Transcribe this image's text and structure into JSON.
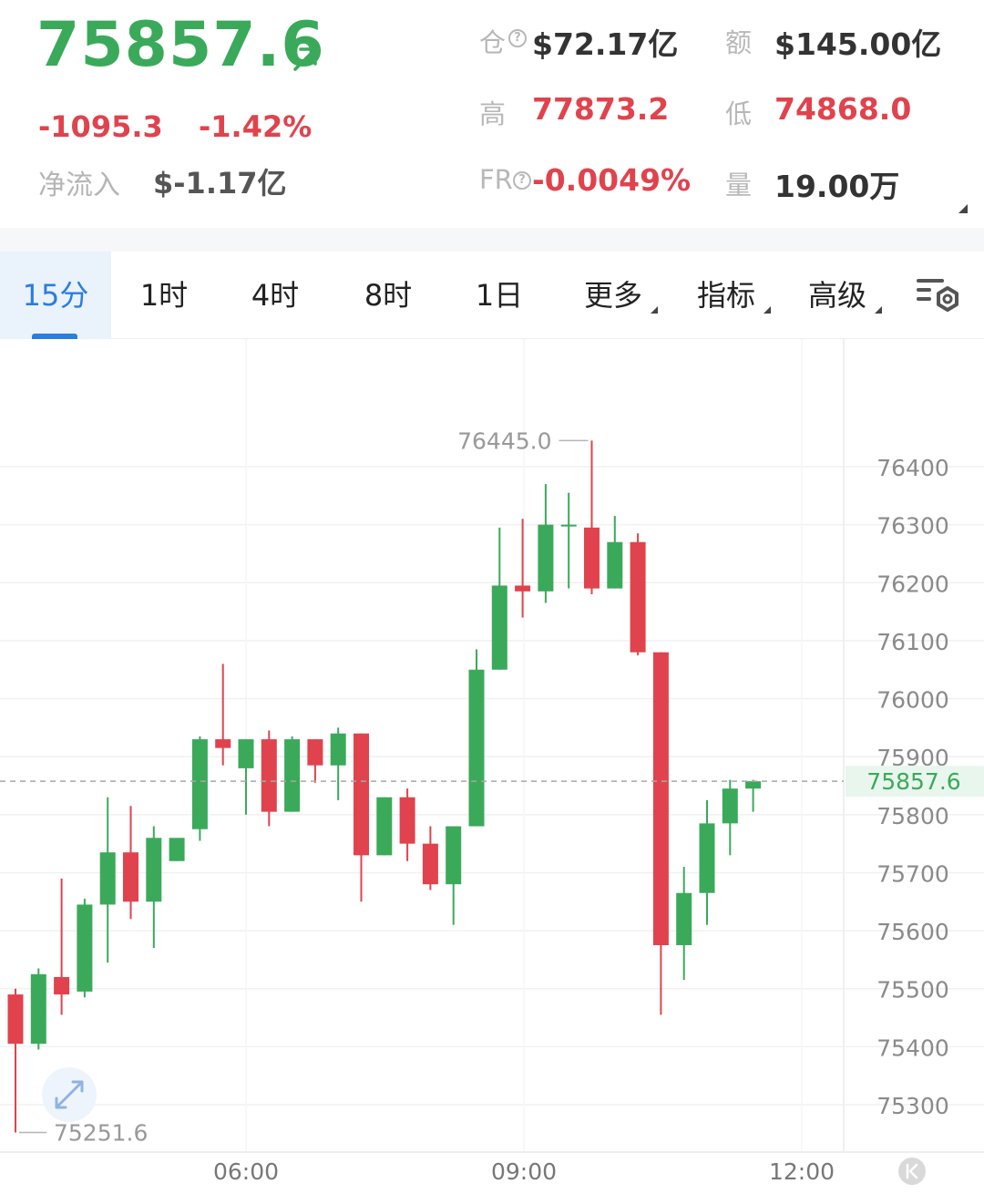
{
  "ticker": {
    "price": "75857.6",
    "change_abs": "-1095.3",
    "change_pct": "-1.42%",
    "net_inflow_label": "净流入",
    "net_inflow_value": "$-1.17亿",
    "price_color": "#3aaa5a",
    "down_color": "#e0434d"
  },
  "stats": {
    "oi_label": "仓",
    "oi_value": "$72.17亿",
    "turnover_label": "额",
    "turnover_value": "$145.00亿",
    "high_label": "高",
    "high_value": "77873.2",
    "low_label": "低",
    "low_value": "74868.0",
    "fr_label": "FR",
    "fr_value": "-0.0049%",
    "volume_label": "量",
    "volume_value": "19.00万"
  },
  "tabs": [
    {
      "label": "15分",
      "active": true
    },
    {
      "label": "1时"
    },
    {
      "label": "4时"
    },
    {
      "label": "8时"
    },
    {
      "label": "1日"
    },
    {
      "label": "更多"
    },
    {
      "label": "指标"
    },
    {
      "label": "高级"
    }
  ],
  "icons": [
    "arrow-up-right-icon",
    "help-icon",
    "settings-icon",
    "fullscreen-icon",
    "collapse-icon"
  ],
  "chart_data": {
    "type": "candlestick",
    "interval": "15分",
    "x_ticks": [
      "06:00",
      "09:00",
      "12:00"
    ],
    "y_ticks": [
      76400,
      76300,
      76200,
      76100,
      76000,
      75900,
      75800,
      75700,
      75600,
      75500,
      75400,
      75300
    ],
    "ylim": [
      75230,
      76480
    ],
    "last_price": 75857.6,
    "last_price_label": "75857.6",
    "max_label": "76445.0",
    "min_label": "75251.6",
    "up_color": "#3aaa5a",
    "down_color": "#e0434d",
    "candles": [
      {
        "o": 75490,
        "h": 75500,
        "l": 75252,
        "c": 75405
      },
      {
        "o": 75405,
        "h": 75535,
        "l": 75395,
        "c": 75525
      },
      {
        "o": 75520,
        "h": 75690,
        "l": 75455,
        "c": 75490
      },
      {
        "o": 75495,
        "h": 75655,
        "l": 75485,
        "c": 75645
      },
      {
        "o": 75645,
        "h": 75830,
        "l": 75545,
        "c": 75735
      },
      {
        "o": 75735,
        "h": 75815,
        "l": 75620,
        "c": 75650
      },
      {
        "o": 75650,
        "h": 75780,
        "l": 75570,
        "c": 75760
      },
      {
        "o": 75720,
        "h": 75755,
        "l": 75720,
        "c": 75760
      },
      {
        "o": 75775,
        "h": 75935,
        "l": 75755,
        "c": 75930
      },
      {
        "o": 75930,
        "h": 76060,
        "l": 75885,
        "c": 75915
      },
      {
        "o": 75880,
        "h": 75930,
        "l": 75800,
        "c": 75930
      },
      {
        "o": 75930,
        "h": 75945,
        "l": 75780,
        "c": 75805
      },
      {
        "o": 75805,
        "h": 75935,
        "l": 75805,
        "c": 75930
      },
      {
        "o": 75930,
        "h": 75930,
        "l": 75855,
        "c": 75885
      },
      {
        "o": 75885,
        "h": 75950,
        "l": 75825,
        "c": 75940
      },
      {
        "o": 75940,
        "h": 75940,
        "l": 75650,
        "c": 75730
      },
      {
        "o": 75730,
        "h": 75830,
        "l": 75730,
        "c": 75830
      },
      {
        "o": 75830,
        "h": 75845,
        "l": 75720,
        "c": 75750
      },
      {
        "o": 75750,
        "h": 75780,
        "l": 75670,
        "c": 75680
      },
      {
        "o": 75680,
        "h": 75780,
        "l": 75610,
        "c": 75780
      },
      {
        "o": 75780,
        "h": 76085,
        "l": 75780,
        "c": 76050
      },
      {
        "o": 76050,
        "h": 76295,
        "l": 76050,
        "c": 76195
      },
      {
        "o": 76195,
        "h": 76310,
        "l": 76140,
        "c": 76185
      },
      {
        "o": 76185,
        "h": 76370,
        "l": 76165,
        "c": 76300
      },
      {
        "o": 76300,
        "h": 76355,
        "l": 76190,
        "c": 76300
      },
      {
        "o": 76295,
        "h": 76445,
        "l": 76180,
        "c": 76190
      },
      {
        "o": 76190,
        "h": 76315,
        "l": 76190,
        "c": 76270
      },
      {
        "o": 76270,
        "h": 76285,
        "l": 76075,
        "c": 76080
      },
      {
        "o": 76080,
        "h": 76080,
        "l": 75455,
        "c": 75575
      },
      {
        "o": 75575,
        "h": 75710,
        "l": 75515,
        "c": 75665
      },
      {
        "o": 75665,
        "h": 75825,
        "l": 75610,
        "c": 75785
      },
      {
        "o": 75785,
        "h": 75860,
        "l": 75730,
        "c": 75845
      },
      {
        "o": 75845,
        "h": 75860,
        "l": 75805,
        "c": 75857.6
      }
    ]
  }
}
